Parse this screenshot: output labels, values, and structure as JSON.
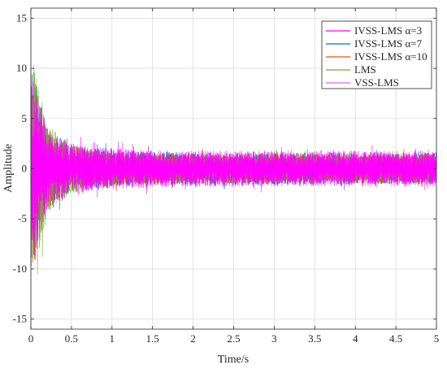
{
  "chart_data": {
    "type": "line",
    "title": "",
    "xlabel": "Time/s",
    "ylabel": "Amplitude",
    "xlim": [
      0,
      5
    ],
    "ylim": [
      -16,
      16
    ],
    "xticks": [
      "0",
      "0.5",
      "1",
      "1.5",
      "2",
      "2.5",
      "3",
      "3.5",
      "4",
      "4.5",
      "5"
    ],
    "yticks": [
      "15",
      "10",
      "5",
      "0",
      "-5",
      "-10",
      "-15"
    ],
    "grid": true,
    "legend_position": "top-right",
    "series": [
      {
        "name": "IVSS-LMS α=3",
        "color": "#ff00ff",
        "envelope_time": [
          0,
          0.05,
          0.1,
          0.2,
          0.5,
          1,
          2,
          3,
          4,
          5
        ],
        "envelope_amplitude": [
          10,
          9,
          7,
          4,
          2.5,
          2,
          1.8,
          1.8,
          1.8,
          1.8
        ]
      },
      {
        "name": "IVSS-LMS α=7",
        "color": "#0072bd",
        "envelope_time": [
          0,
          0.05,
          0.1,
          0.2,
          0.5,
          1,
          2,
          3,
          4,
          5
        ],
        "envelope_amplitude": [
          10,
          9,
          7,
          4,
          2.3,
          1.8,
          1.6,
          1.6,
          1.6,
          1.6
        ]
      },
      {
        "name": "IVSS-LMS α=10",
        "color": "#d95319",
        "envelope_time": [
          0,
          0.05,
          0.1,
          0.2,
          0.5,
          1,
          2,
          3,
          4,
          5
        ],
        "envelope_amplitude": [
          10,
          9,
          7,
          4,
          2.2,
          1.7,
          1.5,
          1.5,
          1.5,
          1.5
        ]
      },
      {
        "name": "LMS",
        "color": "#77ac30",
        "envelope_time": [
          0,
          0.05,
          0.1,
          0.2,
          0.5,
          1,
          2,
          3,
          4,
          5
        ],
        "envelope_amplitude": [
          12,
          11,
          8,
          4.5,
          2.5,
          1.5,
          1.2,
          1.2,
          1.2,
          1.2
        ]
      },
      {
        "name": "VSS-LMS",
        "color": "#d966ff",
        "envelope_time": [
          0,
          0.05,
          0.1,
          0.2,
          0.5,
          1,
          2,
          3,
          4,
          5
        ],
        "envelope_amplitude": [
          8,
          7,
          5,
          3,
          1.5,
          0.9,
          0.8,
          0.8,
          0.8,
          0.8
        ]
      }
    ]
  }
}
